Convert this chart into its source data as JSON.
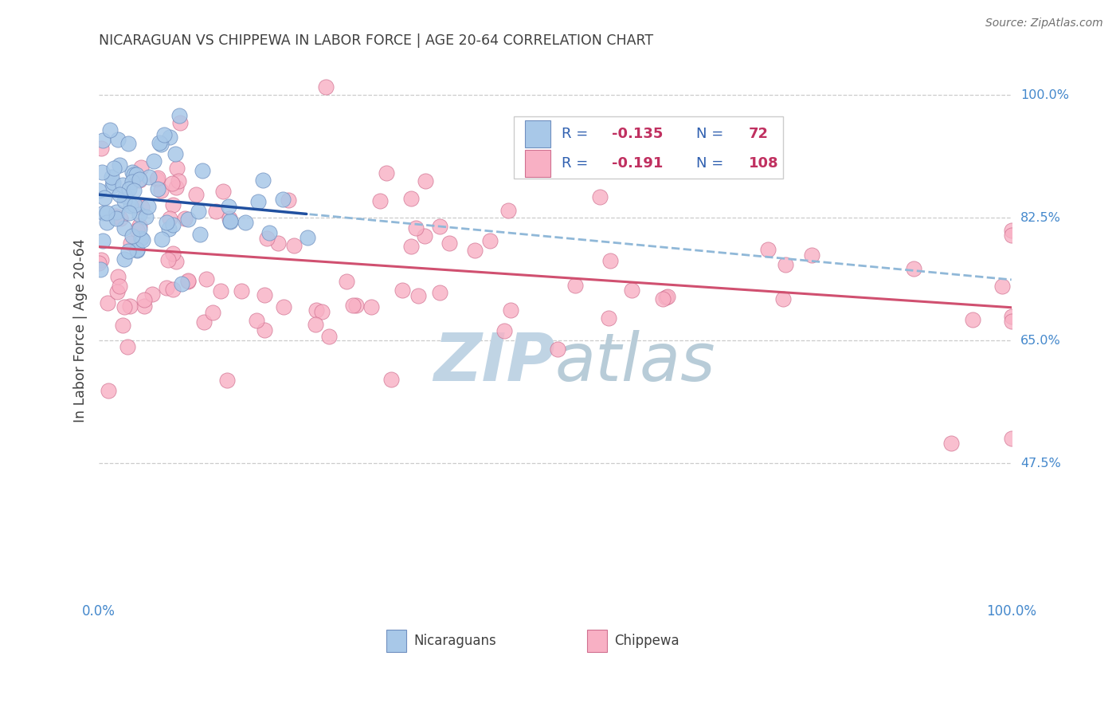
{
  "title": "NICARAGUAN VS CHIPPEWA IN LABOR FORCE | AGE 20-64 CORRELATION CHART",
  "source": "Source: ZipAtlas.com",
  "ylabel": "In Labor Force | Age 20-64",
  "legend_r1": "-0.135",
  "legend_n1": "72",
  "legend_r2": "-0.191",
  "legend_n2": "108",
  "blue_scatter_color": "#a8c8e8",
  "pink_scatter_color": "#f8b0c4",
  "blue_edge_color": "#7090c0",
  "pink_edge_color": "#d07090",
  "blue_line_color": "#2050a0",
  "pink_line_color": "#d05070",
  "dashed_line_color": "#90b8d8",
  "watermark_zip_color": "#c0d4e4",
  "watermark_atlas_color": "#b8ccd8",
  "title_color": "#404040",
  "axis_label_color": "#4488cc",
  "legend_label_color": "#3060b0",
  "legend_value_color": "#c03060",
  "background_color": "#ffffff",
  "grid_color": "#cccccc",
  "ytick_vals": [
    1.0,
    0.825,
    0.65,
    0.475
  ],
  "ytick_labels": [
    "100.0%",
    "82.5%",
    "65.0%",
    "47.5%"
  ],
  "xlim": [
    0.0,
    1.0
  ],
  "ylim": [
    0.28,
    1.05
  ],
  "nic_n": 72,
  "chip_n": 108,
  "nic_R": -0.135,
  "chip_R": -0.191
}
